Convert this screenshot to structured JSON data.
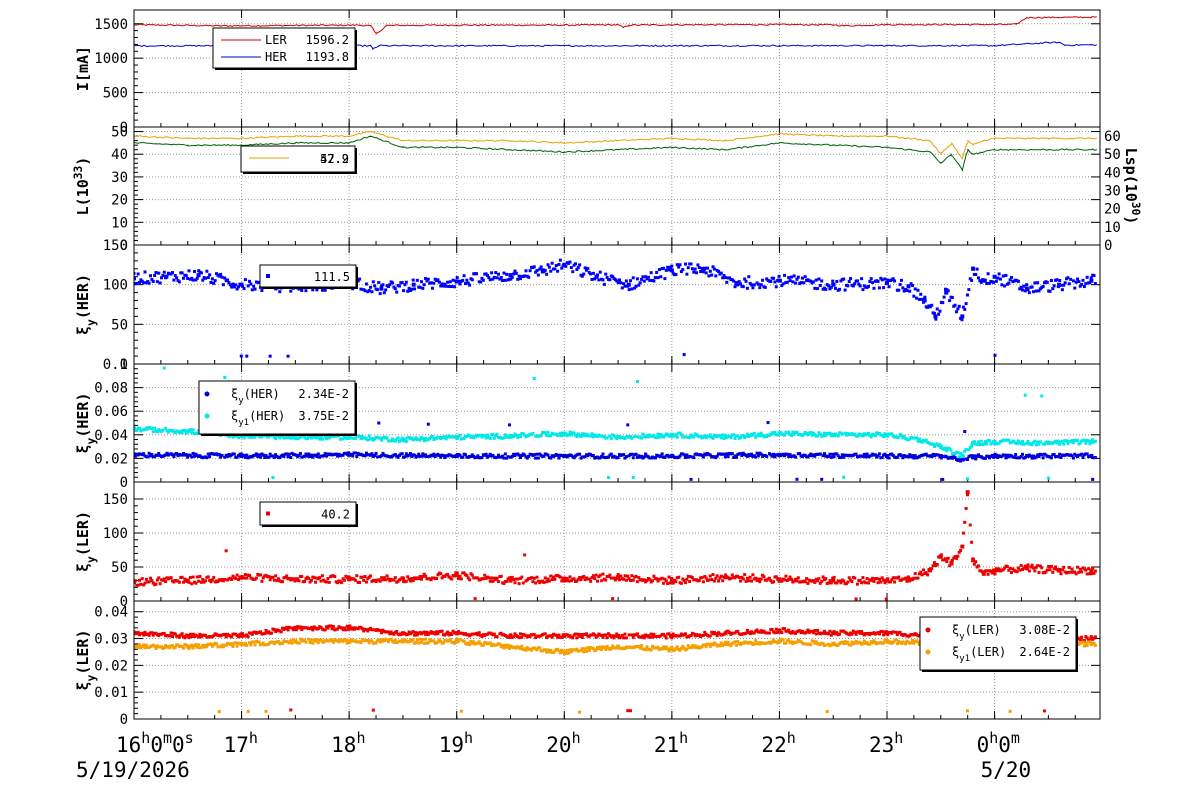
{
  "chart_data": [
    {
      "type": "line",
      "ylabel": "I[mA]",
      "ylim": [
        0,
        1700
      ],
      "yticks": [
        0,
        500,
        1000,
        1500
      ],
      "legend": "top-left",
      "series": [
        {
          "name": "LER",
          "value": "1596.2",
          "color": "#cc0000",
          "x": [
            16.0,
            16.8,
            17.4,
            18.1,
            18.2,
            18.25,
            18.35,
            19.0,
            20.0,
            20.5,
            20.55,
            20.6,
            21.0,
            22.0,
            22.5,
            22.6,
            23.0,
            24.2,
            24.3,
            24.9
          ],
          "y": [
            1485,
            1470,
            1475,
            1480,
            1470,
            1350,
            1475,
            1480,
            1480,
            1485,
            1445,
            1480,
            1485,
            1488,
            1485,
            1470,
            1488,
            1490,
            1590,
            1596
          ]
        },
        {
          "name": "HER",
          "value": "1193.8",
          "color": "#0000cc",
          "x": [
            16.0,
            18.2,
            18.22,
            18.28,
            18.35,
            20.0,
            22.0,
            24.0,
            24.5,
            24.6,
            24.65,
            24.9
          ],
          "y": [
            1180,
            1180,
            1130,
            1185,
            1180,
            1180,
            1182,
            1182,
            1225,
            1230,
            1190,
            1193
          ]
        }
      ]
    },
    {
      "type": "line",
      "ylabel": "L(10^33)",
      "ylim": [
        0,
        52
      ],
      "yticks": [
        0,
        10,
        20,
        30,
        40,
        50
      ],
      "y2label": "Lsp(10^30)",
      "y2ticks": [
        0,
        10,
        20,
        30,
        40,
        50,
        60
      ],
      "legend": "top-left",
      "legend_values": [
        "57.9",
        "42.2"
      ],
      "series": [
        {
          "name": "L",
          "color": "#e8a000",
          "x": [
            16.0,
            16.5,
            17.0,
            17.5,
            18.0,
            18.2,
            18.5,
            19.0,
            19.5,
            20.0,
            20.5,
            21.0,
            21.5,
            22.0,
            22.5,
            23.0,
            23.4,
            23.5,
            23.6,
            23.7,
            23.75,
            23.8,
            23.9,
            24.0,
            24.5,
            24.9
          ],
          "y": [
            48,
            47,
            47,
            48,
            48,
            50,
            46,
            46,
            46,
            45,
            46,
            47,
            46,
            49,
            48,
            48,
            46,
            40,
            45,
            38,
            46,
            44,
            46,
            47,
            47,
            47
          ]
        },
        {
          "name": "Lsp",
          "color": "#006000",
          "x": [
            16.0,
            16.5,
            17.0,
            17.5,
            18.0,
            18.2,
            18.5,
            19.0,
            19.5,
            20.0,
            20.5,
            21.0,
            21.5,
            22.0,
            22.5,
            23.0,
            23.4,
            23.5,
            23.6,
            23.7,
            23.75,
            23.8,
            23.9,
            24.0,
            24.5,
            24.9
          ],
          "y": [
            45,
            44,
            44,
            45,
            45,
            48,
            43,
            43,
            42,
            41,
            42,
            43,
            42,
            45,
            44,
            43,
            41,
            36,
            40,
            33,
            42,
            40,
            41,
            42,
            42,
            42
          ]
        }
      ]
    },
    {
      "type": "scatter",
      "ylabel": "ξy(HER)",
      "ylim": [
        0,
        150
      ],
      "yticks": [
        0,
        50,
        100,
        150
      ],
      "legend": "top-left",
      "legend_values": [
        "111.5"
      ],
      "series": [
        {
          "name": "ξy(HER)",
          "color": "#0000ff",
          "x": [
            16.0,
            16.3,
            16.6,
            17.0,
            17.5,
            18.0,
            18.3,
            18.6,
            19.0,
            19.5,
            19.8,
            20.0,
            20.3,
            20.6,
            21.0,
            21.3,
            21.6,
            22.0,
            22.5,
            23.0,
            23.2,
            23.35,
            23.45,
            23.55,
            23.7,
            23.8,
            23.9,
            24.0,
            24.3,
            24.6,
            24.9
          ],
          "y": [
            108,
            110,
            112,
            100,
            98,
            102,
            95,
            100,
            104,
            112,
            118,
            125,
            110,
            100,
            118,
            120,
            102,
            105,
            100,
            102,
            98,
            80,
            60,
            90,
            60,
            120,
            105,
            110,
            95,
            100,
            105
          ]
        }
      ]
    },
    {
      "type": "scatter",
      "ylabel": "ξy(HER)",
      "ylim": [
        0,
        0.1
      ],
      "yticks": [
        0,
        0.02,
        0.04,
        0.06,
        0.08,
        0.1
      ],
      "legend": "top-left",
      "series": [
        {
          "name": "ξy(HER)",
          "legend_value": "2.34E-2",
          "color": "#0000dd",
          "x": [
            16.0,
            17.0,
            18.0,
            19.0,
            20.0,
            21.0,
            22.0,
            23.0,
            23.5,
            23.7,
            23.8,
            24.0,
            24.9
          ],
          "y": [
            0.023,
            0.022,
            0.023,
            0.022,
            0.022,
            0.022,
            0.023,
            0.022,
            0.022,
            0.019,
            0.021,
            0.022,
            0.022
          ]
        },
        {
          "name": "ξy1(HER)",
          "legend_value": "3.75E-2",
          "color": "#00e8e8",
          "x": [
            16.0,
            16.5,
            17.0,
            17.5,
            18.0,
            18.5,
            19.0,
            19.5,
            20.0,
            20.5,
            21.0,
            21.5,
            22.0,
            22.5,
            23.0,
            23.3,
            23.5,
            23.7,
            23.8,
            24.0,
            24.5,
            24.9
          ],
          "y": [
            0.045,
            0.043,
            0.039,
            0.038,
            0.038,
            0.036,
            0.038,
            0.039,
            0.041,
            0.038,
            0.04,
            0.038,
            0.041,
            0.04,
            0.04,
            0.036,
            0.03,
            0.022,
            0.033,
            0.034,
            0.033,
            0.034
          ]
        }
      ]
    },
    {
      "type": "scatter",
      "ylabel": "ξy(LER)",
      "ylim": [
        0,
        175
      ],
      "yticks": [
        0,
        50,
        100,
        150
      ],
      "legend": "top-left",
      "legend_values": [
        "40.2"
      ],
      "series": [
        {
          "name": "ξy(LER)",
          "color": "#ee0000",
          "x": [
            16.0,
            16.5,
            17.0,
            17.5,
            18.0,
            18.5,
            19.0,
            19.5,
            20.0,
            20.5,
            21.0,
            21.5,
            22.0,
            22.5,
            23.0,
            23.2,
            23.4,
            23.5,
            23.6,
            23.7,
            23.75,
            23.8,
            23.9,
            24.0,
            24.3,
            24.6,
            24.9
          ],
          "y": [
            28,
            30,
            35,
            32,
            32,
            33,
            38,
            30,
            33,
            35,
            30,
            35,
            32,
            30,
            30,
            32,
            45,
            65,
            55,
            80,
            160,
            60,
            40,
            45,
            48,
            45,
            45
          ]
        }
      ]
    },
    {
      "type": "scatter",
      "ylabel": "ξy(LER)",
      "ylim": [
        0,
        0.044
      ],
      "yticks": [
        0,
        0.01,
        0.02,
        0.03,
        0.04
      ],
      "legend": "right",
      "series": [
        {
          "name": "ξy(LER)",
          "legend_value": "3.08E-2",
          "color": "#ee0000",
          "x": [
            16.0,
            16.5,
            17.0,
            17.5,
            18.0,
            18.5,
            19.0,
            19.5,
            20.0,
            20.5,
            21.0,
            21.5,
            22.0,
            22.5,
            23.0,
            23.5,
            23.7,
            24.0,
            24.5,
            24.9
          ],
          "y": [
            0.032,
            0.031,
            0.031,
            0.034,
            0.034,
            0.032,
            0.032,
            0.031,
            0.031,
            0.031,
            0.031,
            0.032,
            0.033,
            0.032,
            0.032,
            0.031,
            0.03,
            0.031,
            0.03,
            0.03
          ]
        },
        {
          "name": "ξy1(LER)",
          "legend_value": "2.64E-2",
          "color": "#f5a000",
          "x": [
            16.0,
            16.5,
            17.0,
            17.5,
            18.0,
            18.5,
            19.0,
            19.5,
            20.0,
            20.5,
            21.0,
            21.5,
            22.0,
            22.5,
            23.0,
            23.5,
            23.7,
            24.0,
            24.5,
            24.9
          ],
          "y": [
            0.027,
            0.027,
            0.028,
            0.029,
            0.029,
            0.029,
            0.029,
            0.027,
            0.025,
            0.027,
            0.026,
            0.028,
            0.029,
            0.028,
            0.029,
            0.028,
            0.031,
            0.029,
            0.028,
            0.028
          ]
        }
      ]
    }
  ],
  "x_axis": {
    "xlim": [
      16.0,
      24.98
    ],
    "ticks": [
      {
        "x": 16,
        "h": "16",
        "m": "0",
        "s": "0"
      },
      {
        "x": 17,
        "h": "17"
      },
      {
        "x": 18,
        "h": "18"
      },
      {
        "x": 19,
        "h": "19"
      },
      {
        "x": 20,
        "h": "20"
      },
      {
        "x": 21,
        "h": "21"
      },
      {
        "x": 22,
        "h": "22"
      },
      {
        "x": 23,
        "h": "23"
      },
      {
        "x": 24,
        "h": "0",
        "m": "0"
      }
    ],
    "dates": [
      {
        "x": 16,
        "label": "5/19/2026"
      },
      {
        "x": 24,
        "label": "5/20"
      }
    ]
  }
}
